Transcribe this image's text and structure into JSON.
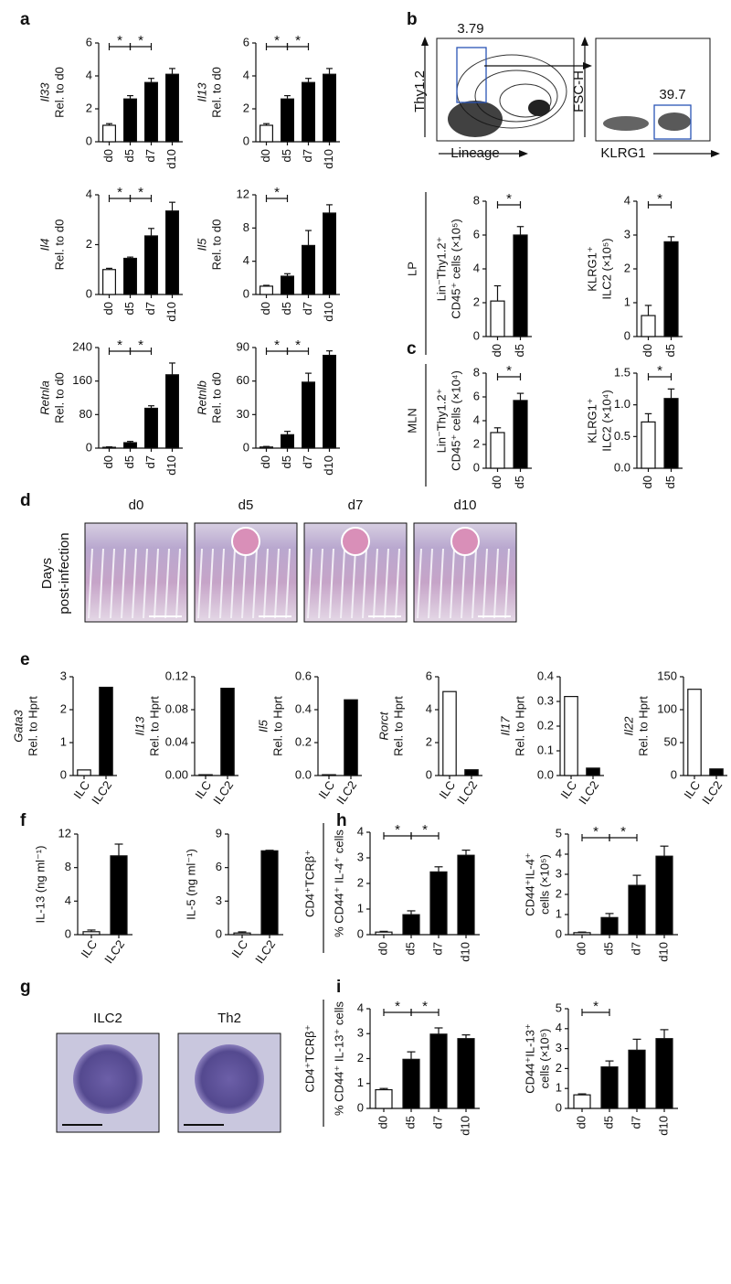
{
  "panel_labels": [
    "a",
    "b",
    "c",
    "d",
    "e",
    "f",
    "g",
    "h",
    "i"
  ],
  "flow": {
    "gate1": "3.79",
    "gate2": "39.7",
    "plot1_y": "Thy1.2",
    "plot1_x": "Lineage",
    "plot2_y": "FSC-H",
    "plot2_x": "KLRG1"
  },
  "histology": {
    "row_label": [
      "Days",
      "post-infection"
    ],
    "columns": [
      "d0",
      "d5",
      "d7",
      "d10"
    ]
  },
  "cytospin": {
    "columns": [
      "ILC2",
      "Th2"
    ]
  },
  "chart_data": [
    {
      "type": "bar",
      "ylabel": [
        "Il33",
        "Rel. to d0"
      ],
      "italic_first": true,
      "categories": [
        "d0",
        "d5",
        "d7",
        "d10"
      ],
      "values": [
        1.0,
        2.6,
        3.6,
        4.1
      ],
      "errors": [
        0.1,
        0.2,
        0.25,
        0.35
      ],
      "colors": [
        "#ffffff",
        "#000000",
        "#000000",
        "#000000"
      ],
      "ylim": [
        0,
        6
      ],
      "yticks": [
        0,
        2,
        4,
        6
      ],
      "brackets": [
        [
          0,
          1
        ],
        [
          1,
          2
        ]
      ],
      "bracket_label": "*"
    },
    {
      "type": "bar",
      "ylabel": [
        "Il13",
        "Rel. to d0"
      ],
      "italic_first": true,
      "categories": [
        "d0",
        "d5",
        "d7",
        "d10"
      ],
      "values": [
        1.0,
        2.6,
        3.6,
        4.1
      ],
      "errors": [
        0.1,
        0.2,
        0.25,
        0.35
      ],
      "colors": [
        "#ffffff",
        "#000000",
        "#000000",
        "#000000"
      ],
      "ylim": [
        0,
        6
      ],
      "yticks": [
        0,
        2,
        4,
        6
      ],
      "brackets": [
        [
          0,
          1
        ],
        [
          1,
          2
        ]
      ],
      "bracket_label": "*"
    },
    {
      "type": "bar",
      "ylabel": [
        "Il4",
        "Rel. to d0"
      ],
      "italic_first": true,
      "categories": [
        "d0",
        "d5",
        "d7",
        "d10"
      ],
      "values": [
        1.0,
        1.45,
        2.35,
        3.35
      ],
      "errors": [
        0.05,
        0.05,
        0.3,
        0.35
      ],
      "colors": [
        "#ffffff",
        "#000000",
        "#000000",
        "#000000"
      ],
      "ylim": [
        0,
        4
      ],
      "yticks": [
        0,
        2,
        4
      ],
      "brackets": [
        [
          0,
          1
        ],
        [
          1,
          2
        ]
      ],
      "bracket_label": "*"
    },
    {
      "type": "bar",
      "ylabel": [
        "Il5",
        "Rel. to d0"
      ],
      "italic_first": true,
      "categories": [
        "d0",
        "d5",
        "d7",
        "d10"
      ],
      "values": [
        1.0,
        2.2,
        5.9,
        9.8
      ],
      "errors": [
        0.1,
        0.3,
        1.8,
        1.0
      ],
      "colors": [
        "#ffffff",
        "#000000",
        "#000000",
        "#000000"
      ],
      "ylim": [
        0,
        12
      ],
      "yticks": [
        0,
        4,
        8,
        12
      ],
      "brackets": [
        [
          0,
          1
        ]
      ],
      "bracket_label": "*"
    },
    {
      "type": "bar",
      "ylabel": [
        "Retnla",
        "Rel. to d0"
      ],
      "italic_first": true,
      "categories": [
        "d0",
        "d5",
        "d7",
        "d10"
      ],
      "values": [
        2,
        13,
        95,
        175
      ],
      "errors": [
        1,
        3,
        6,
        28
      ],
      "colors": [
        "#ffffff",
        "#000000",
        "#000000",
        "#000000"
      ],
      "ylim": [
        0,
        240
      ],
      "yticks": [
        0,
        80,
        160,
        240
      ],
      "brackets": [
        [
          0,
          1
        ],
        [
          1,
          2
        ]
      ],
      "bracket_label": "*"
    },
    {
      "type": "bar",
      "ylabel": [
        "Retnlb",
        "Rel. to d0"
      ],
      "italic_first": true,
      "categories": [
        "d0",
        "d5",
        "d7",
        "d10"
      ],
      "values": [
        1,
        12,
        59,
        83
      ],
      "errors": [
        0.5,
        3,
        8,
        4
      ],
      "colors": [
        "#ffffff",
        "#000000",
        "#000000",
        "#000000"
      ],
      "ylim": [
        0,
        90
      ],
      "yticks": [
        0,
        30,
        60,
        90
      ],
      "brackets": [
        [
          0,
          1
        ],
        [
          1,
          2
        ]
      ],
      "bracket_label": "*"
    },
    {
      "type": "bar",
      "group_label": "LP",
      "ylabel": [
        "Lin⁻Thy1.2⁺",
        "CD45⁺ cells (×10⁵)"
      ],
      "categories": [
        "d0",
        "d5"
      ],
      "values": [
        2.1,
        6.0
      ],
      "errors": [
        0.9,
        0.5
      ],
      "colors": [
        "#ffffff",
        "#000000"
      ],
      "ylim": [
        0,
        8
      ],
      "yticks": [
        0,
        2,
        4,
        6,
        8
      ],
      "brackets": [
        [
          0,
          1
        ]
      ],
      "bracket_label": "*"
    },
    {
      "type": "bar",
      "ylabel": [
        "KLRG1⁺",
        "ILC2 (×10⁵)"
      ],
      "categories": [
        "d0",
        "d5"
      ],
      "values": [
        0.62,
        2.8
      ],
      "errors": [
        0.3,
        0.15
      ],
      "colors": [
        "#ffffff",
        "#000000"
      ],
      "ylim": [
        0,
        4
      ],
      "yticks": [
        0,
        1,
        2,
        3,
        4
      ],
      "brackets": [
        [
          0,
          1
        ]
      ],
      "bracket_label": "*"
    },
    {
      "type": "bar",
      "group_label": "MLN",
      "ylabel": [
        "Lin⁻Thy1.2⁺",
        "CD45⁺ cells (×10⁴)"
      ],
      "categories": [
        "d0",
        "d5"
      ],
      "values": [
        3.0,
        5.7
      ],
      "errors": [
        0.4,
        0.6
      ],
      "colors": [
        "#ffffff",
        "#000000"
      ],
      "ylim": [
        0,
        8
      ],
      "yticks": [
        0,
        2,
        4,
        6,
        8
      ],
      "brackets": [
        [
          0,
          1
        ]
      ],
      "bracket_label": "*"
    },
    {
      "type": "bar",
      "ylabel": [
        "KLRG1⁺",
        "ILC2 (×10⁴)"
      ],
      "categories": [
        "d0",
        "d5"
      ],
      "values": [
        0.73,
        1.1
      ],
      "errors": [
        0.13,
        0.15
      ],
      "colors": [
        "#ffffff",
        "#000000"
      ],
      "ylim": [
        0,
        1.5
      ],
      "yticks": [
        {
          "value": 0,
          "label": "0.0"
        },
        0.5,
        {
          "value": 1,
          "label": "1.0"
        },
        1.5
      ],
      "brackets": [
        [
          0,
          1
        ]
      ],
      "bracket_label": "*"
    },
    {
      "type": "bar",
      "ylabel": [
        "Gata3",
        "Rel. to Hprt"
      ],
      "italic_first": true,
      "categories": [
        "ILC",
        "ILC2"
      ],
      "values": [
        0.17,
        2.68
      ],
      "colors": [
        "#ffffff",
        "#000000"
      ],
      "ylim": [
        0,
        3
      ],
      "yticks": [
        0,
        1,
        2,
        3
      ]
    },
    {
      "type": "bar",
      "ylabel": [
        "Il13",
        "Rel. to Hprt"
      ],
      "italic_first": true,
      "categories": [
        "ILC",
        "ILC2"
      ],
      "values": [
        0.001,
        0.106
      ],
      "colors": [
        "#ffffff",
        "#000000"
      ],
      "ylim": [
        0,
        0.12
      ],
      "yticks": [
        {
          "value": 0,
          "label": "0.00"
        },
        0.04,
        0.08,
        0.12
      ]
    },
    {
      "type": "bar",
      "ylabel": [
        "Il5",
        "Rel. to Hprt"
      ],
      "italic_first": true,
      "categories": [
        "ILC",
        "ILC2"
      ],
      "values": [
        0.005,
        0.46
      ],
      "colors": [
        "#ffffff",
        "#000000"
      ],
      "ylim": [
        0,
        0.6
      ],
      "yticks": [
        {
          "value": 0,
          "label": "0.0"
        },
        0.2,
        0.4,
        0.6
      ]
    },
    {
      "type": "bar",
      "ylabel": [
        "Rorct",
        "Rel. to Hprt"
      ],
      "italic_first": true,
      "categories": [
        "ILC",
        "ILC2"
      ],
      "values": [
        5.1,
        0.35
      ],
      "colors": [
        "#ffffff",
        "#000000"
      ],
      "ylim": [
        0,
        6
      ],
      "yticks": [
        0,
        2,
        4,
        6
      ]
    },
    {
      "type": "bar",
      "ylabel": [
        "Il17",
        "Rel. to Hprt"
      ],
      "italic_first": true,
      "categories": [
        "ILC",
        "ILC2"
      ],
      "values": [
        0.32,
        0.03
      ],
      "colors": [
        "#ffffff",
        "#000000"
      ],
      "ylim": [
        0,
        0.4
      ],
      "yticks": [
        {
          "value": 0,
          "label": "0.0"
        },
        0.1,
        0.2,
        0.3,
        0.4
      ]
    },
    {
      "type": "bar",
      "ylabel": [
        "Il22",
        "Rel. to Hprt"
      ],
      "italic_first": true,
      "categories": [
        "ILC",
        "ILC2"
      ],
      "values": [
        131,
        10
      ],
      "colors": [
        "#ffffff",
        "#000000"
      ],
      "ylim": [
        0,
        150
      ],
      "yticks": [
        0,
        50,
        100,
        150
      ]
    },
    {
      "type": "bar",
      "ylabel": [
        "IL-13 (ng ml⁻¹)"
      ],
      "categories": [
        "ILC",
        "ILC2"
      ],
      "values": [
        0.35,
        9.4
      ],
      "errors": [
        0.2,
        1.4
      ],
      "colors": [
        "#ffffff",
        "#000000"
      ],
      "ylim": [
        0,
        12
      ],
      "yticks": [
        0,
        4,
        8,
        12
      ]
    },
    {
      "type": "bar",
      "ylabel": [
        "IL-5 (ng ml⁻¹)"
      ],
      "categories": [
        "ILC",
        "ILC2"
      ],
      "values": [
        0.15,
        7.5
      ],
      "errors": [
        0.1,
        0.05
      ],
      "colors": [
        "#ffffff",
        "#000000"
      ],
      "ylim": [
        0,
        9
      ],
      "yticks": [
        0,
        3,
        6,
        9
      ]
    },
    {
      "type": "bar",
      "group_label": "CD4⁺TCRβ⁺",
      "ylabel": [
        "% CD44⁺ IL-4⁺ cells"
      ],
      "categories": [
        "d0",
        "d5",
        "d7",
        "d10"
      ],
      "values": [
        0.1,
        0.78,
        2.45,
        3.1
      ],
      "errors": [
        0.03,
        0.15,
        0.2,
        0.2
      ],
      "colors": [
        "#ffffff",
        "#000000",
        "#000000",
        "#000000"
      ],
      "ylim": [
        0,
        4
      ],
      "yticks": [
        0,
        1,
        2,
        3,
        4
      ],
      "brackets": [
        [
          0,
          1
        ],
        [
          1,
          2
        ]
      ],
      "bracket_label": "*"
    },
    {
      "type": "bar",
      "ylabel": [
        "CD44⁺IL-4⁺",
        "cells (×10⁵)"
      ],
      "categories": [
        "d0",
        "d5",
        "d7",
        "d10"
      ],
      "values": [
        0.1,
        0.85,
        2.45,
        3.9
      ],
      "errors": [
        0.03,
        0.2,
        0.5,
        0.5
      ],
      "colors": [
        "#ffffff",
        "#000000",
        "#000000",
        "#000000"
      ],
      "ylim": [
        0,
        5
      ],
      "yticks": [
        0,
        1,
        2,
        3,
        4,
        5
      ],
      "brackets": [
        [
          0,
          1
        ],
        [
          1,
          2
        ]
      ],
      "bracket_label": "*"
    },
    {
      "type": "bar",
      "group_label": "CD4⁺TCRβ⁺",
      "ylabel": [
        "% CD44⁺ IL-13⁺ cells"
      ],
      "categories": [
        "d0",
        "d5",
        "d7",
        "d10"
      ],
      "values": [
        0.75,
        1.97,
        2.98,
        2.8
      ],
      "errors": [
        0.05,
        0.3,
        0.25,
        0.15
      ],
      "colors": [
        "#ffffff",
        "#000000",
        "#000000",
        "#000000"
      ],
      "ylim": [
        0,
        4
      ],
      "yticks": [
        0,
        1,
        2,
        3,
        4
      ],
      "brackets": [
        [
          0,
          1
        ],
        [
          1,
          2
        ]
      ],
      "bracket_label": "*"
    },
    {
      "type": "bar",
      "ylabel": [
        "CD44⁺IL-13⁺",
        "cells (×10⁵)"
      ],
      "categories": [
        "d0",
        "d5",
        "d7",
        "d10"
      ],
      "values": [
        0.68,
        2.08,
        2.92,
        3.5
      ],
      "errors": [
        0.05,
        0.3,
        0.55,
        0.45
      ],
      "colors": [
        "#ffffff",
        "#000000",
        "#000000",
        "#000000"
      ],
      "ylim": [
        0,
        5
      ],
      "yticks": [
        0,
        1,
        2,
        3,
        4,
        5
      ],
      "brackets": [
        [
          0,
          1
        ]
      ],
      "bracket_label": "*"
    }
  ]
}
